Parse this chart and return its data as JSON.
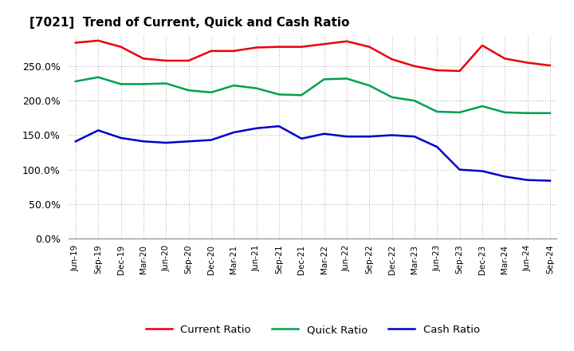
{
  "title": "[7021]  Trend of Current, Quick and Cash Ratio",
  "labels": [
    "Jun-19",
    "Sep-19",
    "Dec-19",
    "Mar-20",
    "Jun-20",
    "Sep-20",
    "Dec-20",
    "Mar-21",
    "Jun-21",
    "Sep-21",
    "Dec-21",
    "Mar-22",
    "Jun-22",
    "Sep-22",
    "Dec-22",
    "Mar-23",
    "Jun-23",
    "Sep-23",
    "Dec-23",
    "Mar-24",
    "Jun-24",
    "Sep-24"
  ],
  "current_ratio": [
    284,
    287,
    278,
    261,
    258,
    258,
    272,
    272,
    277,
    278,
    278,
    282,
    286,
    278,
    260,
    250,
    244,
    243,
    280,
    261,
    255,
    251
  ],
  "quick_ratio": [
    228,
    234,
    224,
    224,
    225,
    215,
    212,
    222,
    218,
    209,
    208,
    231,
    232,
    222,
    205,
    200,
    184,
    183,
    192,
    183,
    182,
    182
  ],
  "cash_ratio": [
    141,
    157,
    146,
    141,
    139,
    141,
    143,
    154,
    160,
    163,
    145,
    152,
    148,
    148,
    150,
    148,
    133,
    100,
    98,
    90,
    85,
    84
  ],
  "current_color": "#e8000d",
  "quick_color": "#00a050",
  "cash_color": "#0000cc",
  "bg_color": "#ffffff",
  "grid_color": "#bbbbbb",
  "ylim": [
    0,
    295
  ],
  "yticks": [
    0,
    50,
    100,
    150,
    200,
    250
  ],
  "legend_labels": [
    "Current Ratio",
    "Quick Ratio",
    "Cash Ratio"
  ]
}
